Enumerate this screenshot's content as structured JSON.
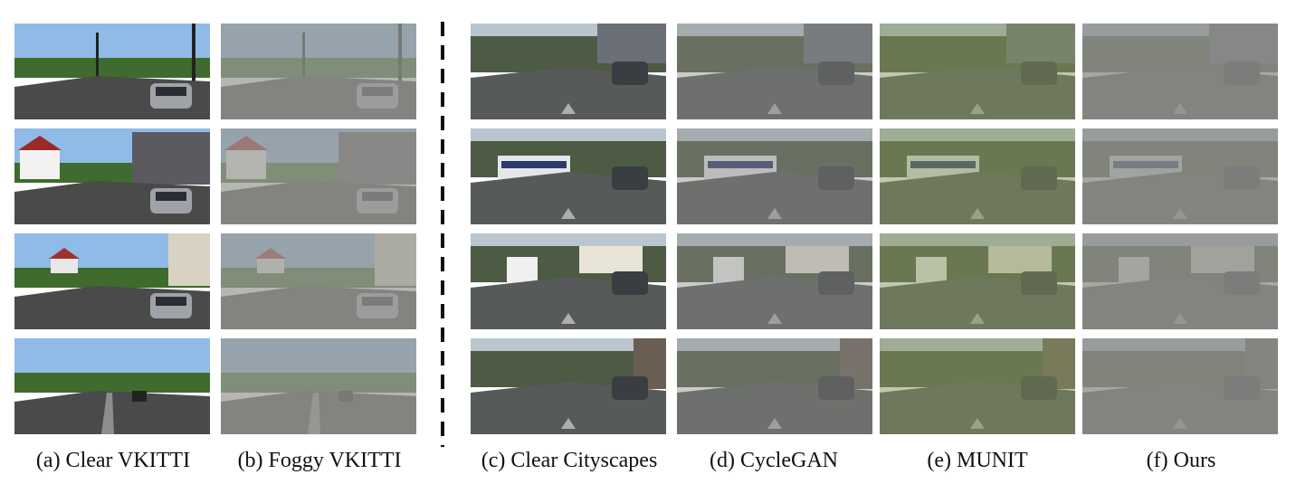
{
  "columns": [
    {
      "key": "clear-vkitti",
      "caption": "(a) Clear VKITTI",
      "style": "clear-synthetic"
    },
    {
      "key": "foggy-vkitti",
      "caption": "(b) Foggy VKITTI",
      "style": "fog"
    },
    {
      "key": "clear-cityscapes",
      "caption": "(c) Clear Cityscapes",
      "style": "clear-real"
    },
    {
      "key": "cyclegan",
      "caption": "(d) CycleGAN",
      "style": "light-fog"
    },
    {
      "key": "munit",
      "caption": "(e) MUNIT",
      "style": "green-tint"
    },
    {
      "key": "ours",
      "caption": "(f) Ours",
      "style": "dense-fog"
    }
  ],
  "rows": [
    {
      "scene": "vkitti-intersection"
    },
    {
      "scene": "vkitti-house-parked-cars"
    },
    {
      "scene": "vkitti-road-with-signs"
    },
    {
      "scene": "vkitti-tree-lined-road"
    }
  ],
  "real_rows": [
    {
      "scene": "cityscapes-crosswalk-cars"
    },
    {
      "scene": "cityscapes-tram-street"
    },
    {
      "scene": "cityscapes-bus-square"
    },
    {
      "scene": "cityscapes-traffic-street"
    }
  ],
  "colors": {
    "sky": "#8fbbe6",
    "tree": "#3f6b2e",
    "road": "#4a4a4a",
    "fog": "#9a9a96",
    "green_tint": "#6d8c2a"
  }
}
